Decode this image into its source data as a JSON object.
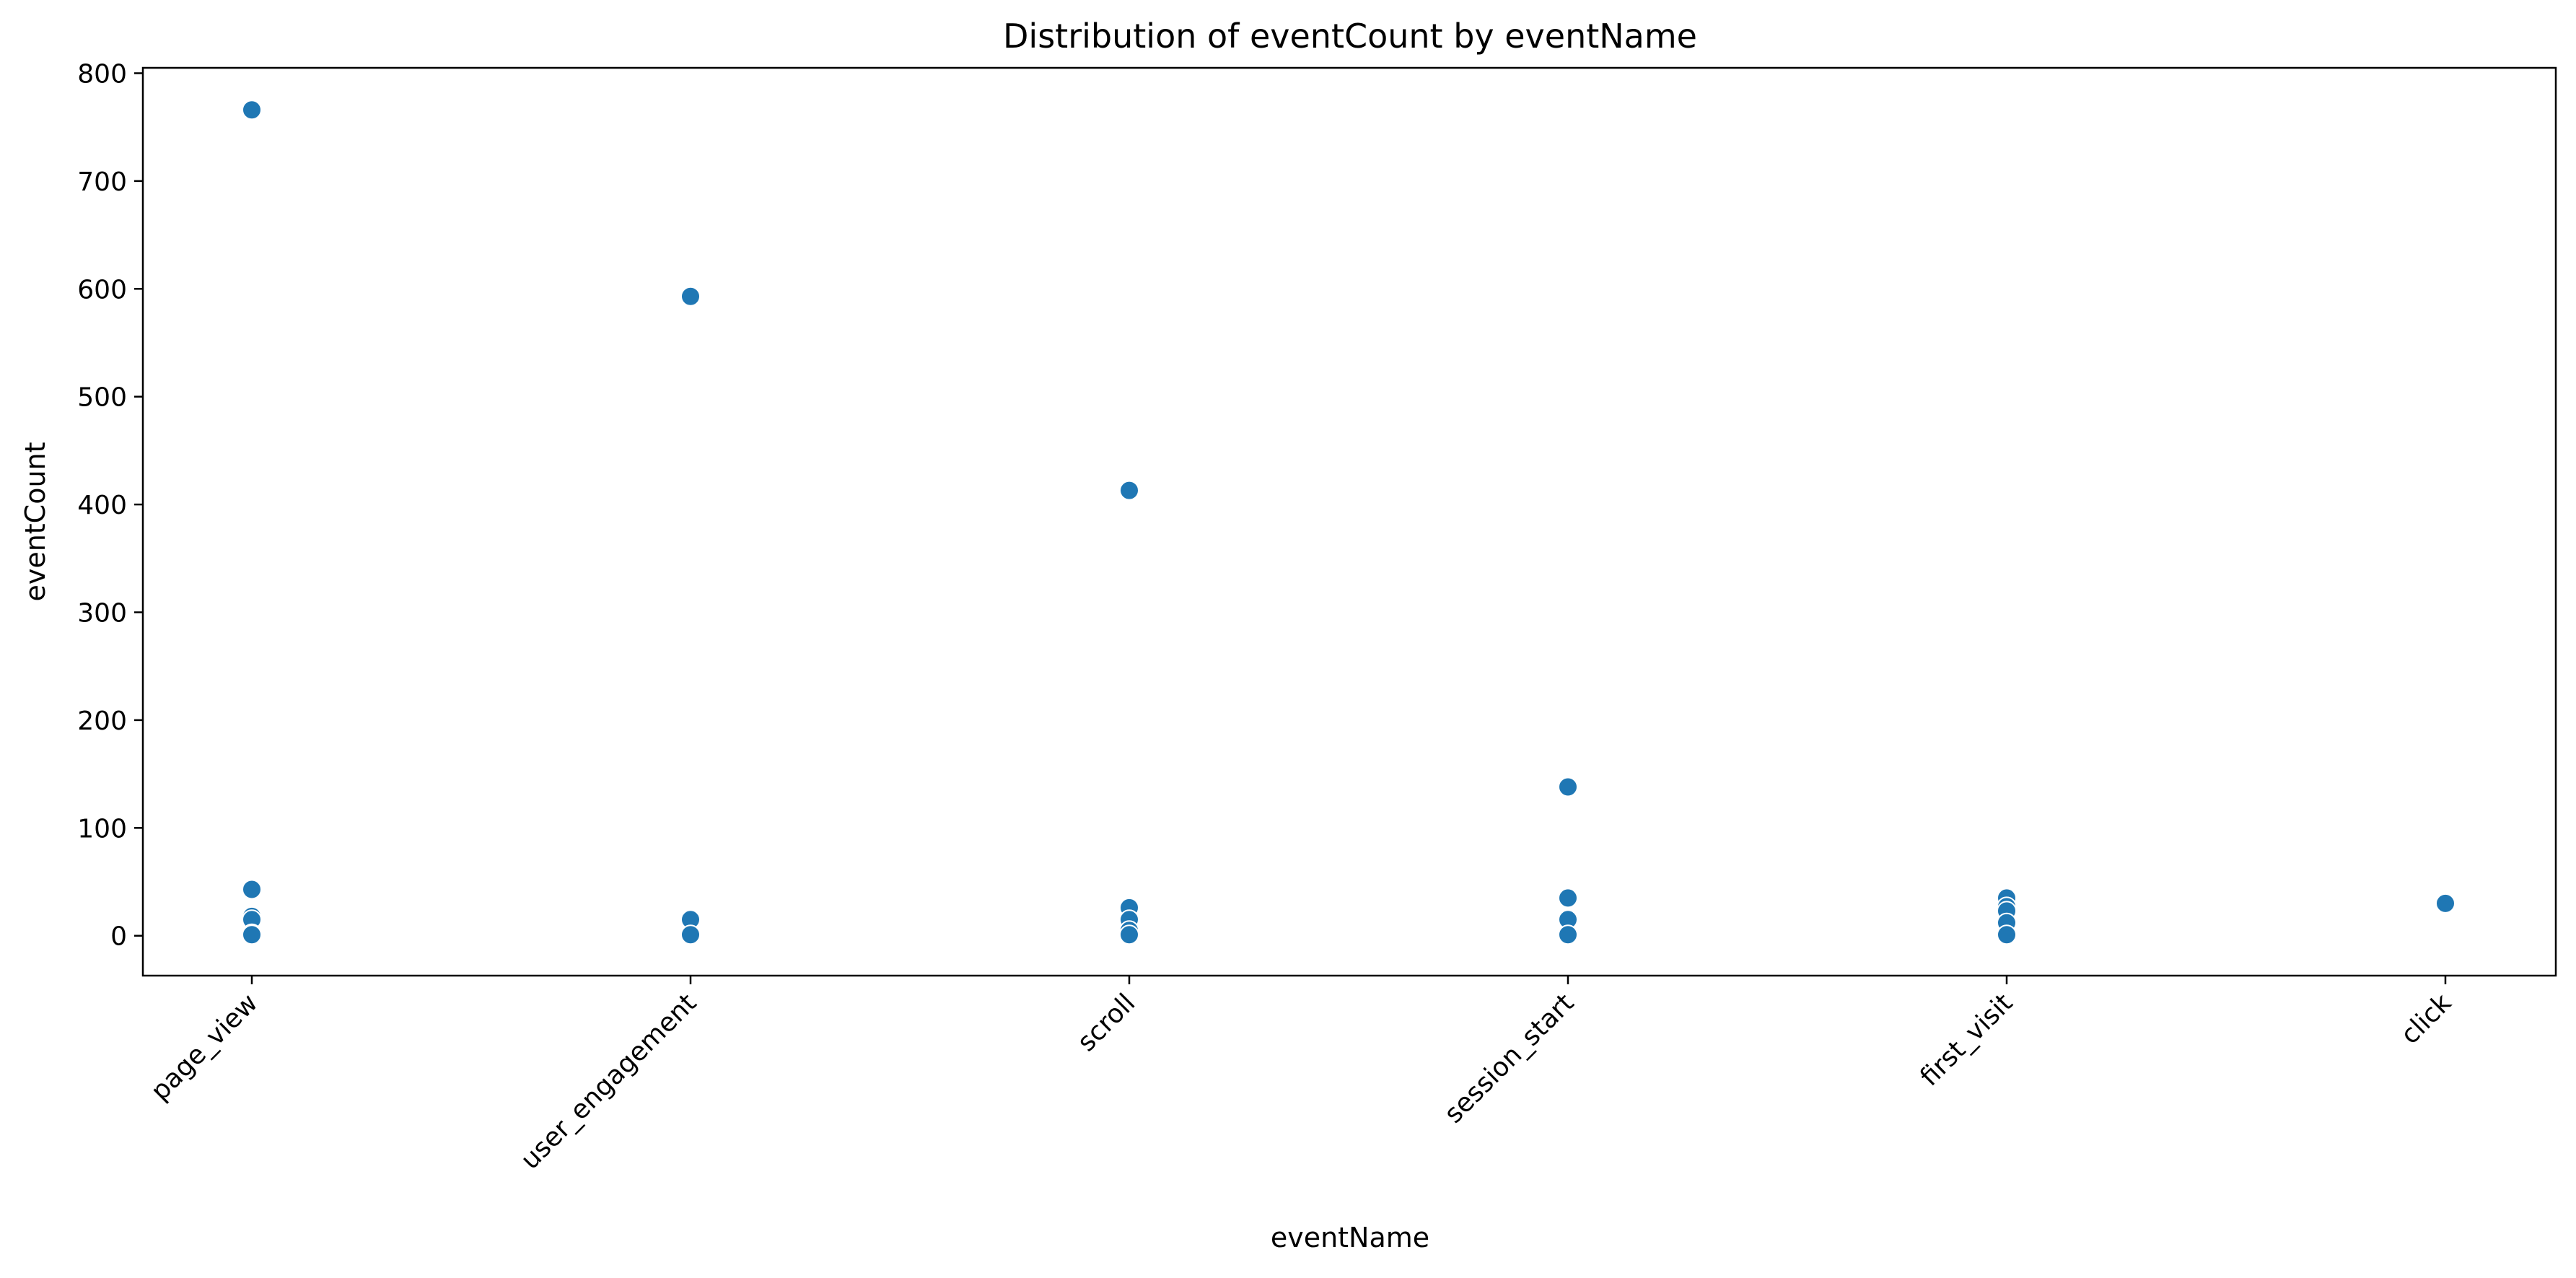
{
  "chart_data": {
    "type": "scatter",
    "title": "Distribution of eventCount by eventName",
    "xlabel": "eventName",
    "ylabel": "eventCount",
    "categories": [
      "page_view",
      "user_engagement",
      "scroll",
      "session_start",
      "first_visit",
      "click"
    ],
    "points": [
      {
        "x": "page_view",
        "y": 766
      },
      {
        "x": "page_view",
        "y": 43
      },
      {
        "x": "page_view",
        "y": 18
      },
      {
        "x": "page_view",
        "y": 15
      },
      {
        "x": "page_view",
        "y": 2
      },
      {
        "x": "page_view",
        "y": 1
      },
      {
        "x": "user_engagement",
        "y": 593
      },
      {
        "x": "user_engagement",
        "y": 15
      },
      {
        "x": "user_engagement",
        "y": 1
      },
      {
        "x": "scroll",
        "y": 413
      },
      {
        "x": "scroll",
        "y": 26
      },
      {
        "x": "scroll",
        "y": 15
      },
      {
        "x": "scroll",
        "y": 5
      },
      {
        "x": "scroll",
        "y": 1
      },
      {
        "x": "session_start",
        "y": 138
      },
      {
        "x": "session_start",
        "y": 35
      },
      {
        "x": "session_start",
        "y": 15
      },
      {
        "x": "session_start",
        "y": 1
      },
      {
        "x": "first_visit",
        "y": 35
      },
      {
        "x": "first_visit",
        "y": 27
      },
      {
        "x": "first_visit",
        "y": 23
      },
      {
        "x": "first_visit",
        "y": 12
      },
      {
        "x": "first_visit",
        "y": 1
      },
      {
        "x": "click",
        "y": 30
      }
    ],
    "ylim": [
      -37,
      805
    ],
    "yticks": [
      0,
      100,
      200,
      300,
      400,
      500,
      600,
      700,
      800
    ],
    "grid": false,
    "legend": "none",
    "point_color": "#1f77b4",
    "point_edge_color": "#ffffff"
  }
}
